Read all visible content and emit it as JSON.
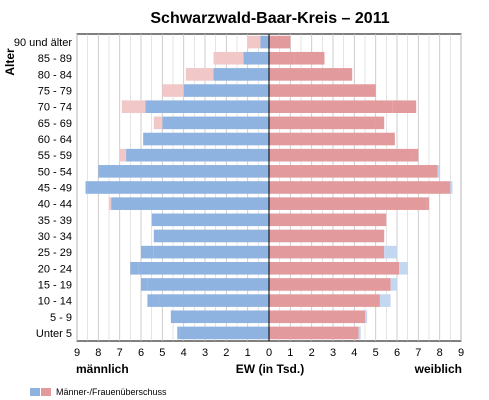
{
  "chart_data": {
    "type": "bar",
    "orientation": "horizontal",
    "subtype": "population-pyramid",
    "title": "Schwarzwald-Baar-Kreis – 2011",
    "ylabel": "Alter",
    "xlabel": "EW (in Tsd.)",
    "left_label": "männlich",
    "right_label": "weiblich",
    "xlim": [
      -9,
      9
    ],
    "xticks": [
      "9",
      "8",
      "7",
      "6",
      "5",
      "4",
      "3",
      "2",
      "1",
      "0",
      "1",
      "2",
      "3",
      "4",
      "5",
      "6",
      "7",
      "8",
      "9"
    ],
    "grid": true,
    "legend": {
      "position": "bottom-left",
      "label": "Männer-/Frauenüberschuss"
    },
    "categories": [
      "90 und älter",
      "85 - 89",
      "80 - 84",
      "75 - 79",
      "70 - 74",
      "65 - 69",
      "60 - 64",
      "55 - 59",
      "50 - 54",
      "45 - 49",
      "40 - 44",
      "35 - 39",
      "30 - 34",
      "25 - 29",
      "20 - 24",
      "15 - 19",
      "10 - 14",
      "5 - 9",
      "Unter 5"
    ],
    "series": [
      {
        "name": "männlich",
        "color": "#8fb3e0",
        "values": [
          0.4,
          1.2,
          2.6,
          4.0,
          5.8,
          5.0,
          5.9,
          6.7,
          8.0,
          8.6,
          7.4,
          5.5,
          5.4,
          6.0,
          6.5,
          6.0,
          5.7,
          4.6,
          4.3
        ]
      },
      {
        "name": "weiblich",
        "color": "#e39a9c",
        "values": [
          1.0,
          2.6,
          3.9,
          5.0,
          6.9,
          5.4,
          5.9,
          7.0,
          7.9,
          8.5,
          7.5,
          5.5,
          5.4,
          5.4,
          6.1,
          5.7,
          5.2,
          4.5,
          4.2
        ]
      }
    ],
    "colors": {
      "male": "#8fb3e0",
      "male_surplus": "#c3d7f0",
      "female": "#e39a9c",
      "female_surplus": "#f1c7c8",
      "grid": "#c8c8c8"
    }
  }
}
